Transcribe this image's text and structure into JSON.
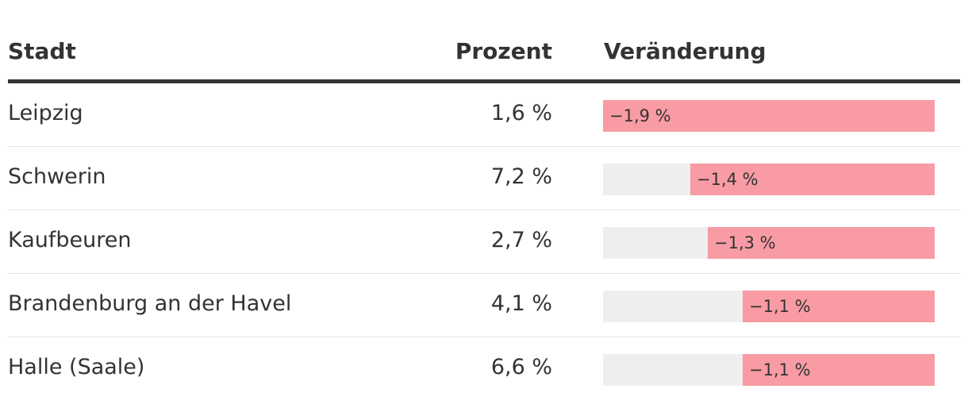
{
  "table": {
    "headers": {
      "city": "Stadt",
      "percent": "Prozent",
      "change": "Veränderung"
    },
    "rows": [
      {
        "city": "Leipzig",
        "percent": "1,6 %",
        "change_label": "−1,9 %",
        "change_value": -1.9
      },
      {
        "city": "Schwerin",
        "percent": "7,2 %",
        "change_label": "−1,4 %",
        "change_value": -1.4
      },
      {
        "city": "Kaufbeuren",
        "percent": "2,7 %",
        "change_label": "−1,3 %",
        "change_value": -1.3
      },
      {
        "city": "Brandenburg an der Havel",
        "percent": "4,1 %",
        "change_label": "−1,1 %",
        "change_value": -1.1
      },
      {
        "city": "Halle (Saale)",
        "percent": "6,6 %",
        "change_label": "−1,1 %",
        "change_value": -1.1
      }
    ]
  },
  "colors": {
    "bar_fill": "#f89ba4",
    "bar_track": "#eeeeee",
    "text": "#333333",
    "header_rule": "#333333"
  },
  "chart_data": {
    "type": "table",
    "columns": [
      "Stadt",
      "Prozent",
      "Veränderung"
    ],
    "categories": [
      "Leipzig",
      "Schwerin",
      "Kaufbeuren",
      "Brandenburg an der Havel",
      "Halle (Saale)"
    ],
    "series": [
      {
        "values": [
          1.6,
          7.2,
          2.7,
          4.1,
          6.6
        ]
      },
      {
        "values": [
          -1.9,
          -1.4,
          -1.3,
          -1.1,
          -1.1
        ]
      }
    ],
    "bar_scale_max": 1.9
  }
}
